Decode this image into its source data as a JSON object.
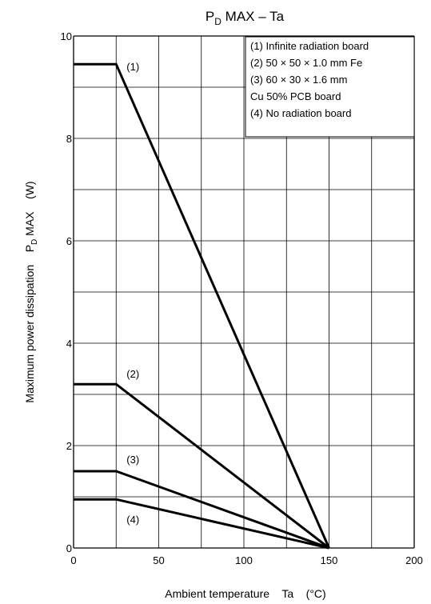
{
  "chart_data": {
    "type": "line",
    "title": {
      "main": "P",
      "sub": "D",
      "rest": " MAX – Ta"
    },
    "xlabel": "Ambient temperature    Ta    (°C)",
    "ylabel": {
      "text": "Maximum power dissipation    P",
      "sub": "D",
      "rest": " MAX    (W)"
    },
    "xlim": [
      0,
      200
    ],
    "ylim": [
      0,
      10
    ],
    "x_ticks": [
      0,
      50,
      100,
      150,
      200
    ],
    "y_ticks": [
      0,
      2,
      4,
      6,
      8,
      10
    ],
    "x_grid_step": 25,
    "y_grid_step": 1,
    "grid": true,
    "legend_position": "top-right",
    "legend": [
      "(1)  Infinite radiation board",
      "(2)  50 × 50 × 1.0 mm Fe",
      "(3)  60 × 30 × 1.6 mm",
      "       Cu 50% PCB board",
      "(4)  No radiation board"
    ],
    "series": [
      {
        "name": "(1)",
        "x": [
          0,
          25,
          150
        ],
        "y": [
          9.45,
          9.45,
          0
        ]
      },
      {
        "name": "(2)",
        "x": [
          0,
          25,
          150
        ],
        "y": [
          3.2,
          3.2,
          0
        ]
      },
      {
        "name": "(3)",
        "x": [
          0,
          25,
          150
        ],
        "y": [
          1.5,
          1.5,
          0
        ]
      },
      {
        "name": "(4)",
        "x": [
          0,
          25,
          150
        ],
        "y": [
          0.95,
          0.95,
          0
        ]
      }
    ]
  }
}
